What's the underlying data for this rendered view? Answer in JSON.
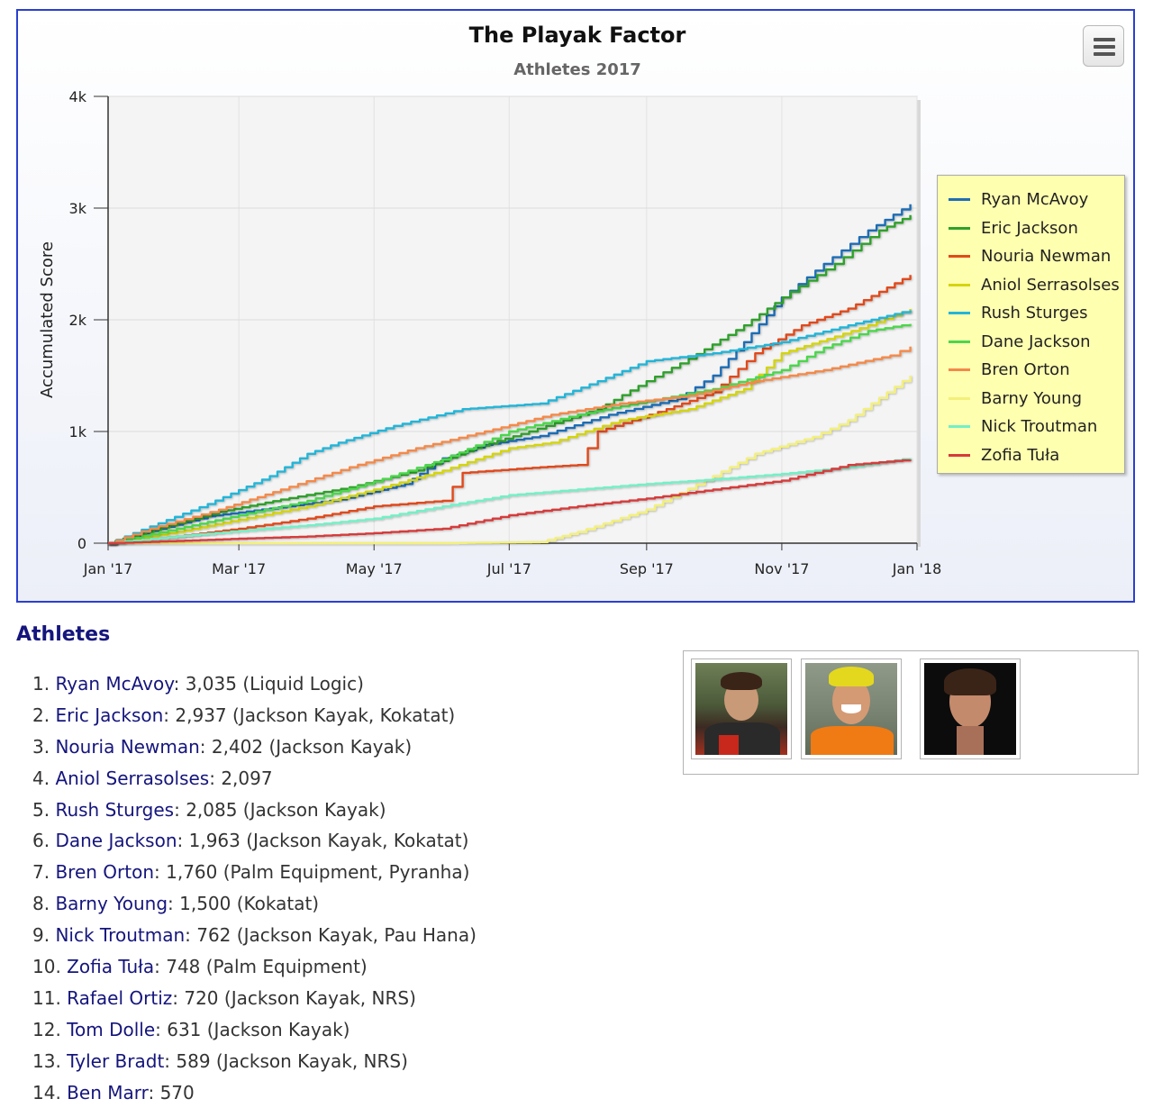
{
  "chart": {
    "title": "The Playak Factor",
    "subtitle": "Athletes 2017",
    "menu_icon": "hamburger-menu-icon"
  },
  "chart_data": {
    "type": "line",
    "title": "The Playak Factor",
    "subtitle": "Athletes 2017",
    "xlabel": "",
    "ylabel": "Accumulated Score",
    "x_ticks": [
      "Jan '17",
      "Mar '17",
      "May '17",
      "Jul '17",
      "Sep '17",
      "Nov '17",
      "Jan '18"
    ],
    "y_ticks": [
      "0",
      "1k",
      "2k",
      "3k",
      "4k"
    ],
    "ylim": [
      0,
      4000
    ],
    "xlim": [
      "2017-01-01",
      "2018-01-01"
    ],
    "grid": true,
    "legend_position": "right",
    "series": [
      {
        "name": "Ryan McAvoy",
        "color": "#1f6db5",
        "points": [
          [
            "2017-01-01",
            0
          ],
          [
            "2017-01-20",
            110
          ],
          [
            "2017-02-15",
            240
          ],
          [
            "2017-03-15",
            310
          ],
          [
            "2017-04-15",
            390
          ],
          [
            "2017-05-15",
            530
          ],
          [
            "2017-06-01",
            760
          ],
          [
            "2017-06-20",
            880
          ],
          [
            "2017-07-15",
            960
          ],
          [
            "2017-08-15",
            1150
          ],
          [
            "2017-09-15",
            1290
          ],
          [
            "2017-10-01",
            1500
          ],
          [
            "2017-10-15",
            1800
          ],
          [
            "2017-11-01",
            2200
          ],
          [
            "2017-11-20",
            2500
          ],
          [
            "2017-12-10",
            2800
          ],
          [
            "2017-12-29",
            3035
          ]
        ]
      },
      {
        "name": "Eric Jackson",
        "color": "#2ea02c",
        "points": [
          [
            "2017-01-01",
            0
          ],
          [
            "2017-01-25",
            140
          ],
          [
            "2017-02-20",
            280
          ],
          [
            "2017-03-20",
            390
          ],
          [
            "2017-04-20",
            500
          ],
          [
            "2017-05-20",
            650
          ],
          [
            "2017-06-15",
            850
          ],
          [
            "2017-07-10",
            1000
          ],
          [
            "2017-08-10",
            1200
          ],
          [
            "2017-09-01",
            1450
          ],
          [
            "2017-09-20",
            1650
          ],
          [
            "2017-10-15",
            1950
          ],
          [
            "2017-11-05",
            2250
          ],
          [
            "2017-11-25",
            2500
          ],
          [
            "2017-12-15",
            2800
          ],
          [
            "2017-12-29",
            2937
          ]
        ]
      },
      {
        "name": "Nouria Newman",
        "color": "#e04a1a",
        "points": [
          [
            "2017-01-01",
            0
          ],
          [
            "2017-02-01",
            60
          ],
          [
            "2017-03-01",
            130
          ],
          [
            "2017-04-01",
            220
          ],
          [
            "2017-05-01",
            330
          ],
          [
            "2017-06-01",
            380
          ],
          [
            "2017-06-10",
            630
          ],
          [
            "2017-07-15",
            680
          ],
          [
            "2017-08-01",
            700
          ],
          [
            "2017-08-10",
            1000
          ],
          [
            "2017-09-10",
            1200
          ],
          [
            "2017-10-01",
            1350
          ],
          [
            "2017-10-20",
            1700
          ],
          [
            "2017-11-10",
            1950
          ],
          [
            "2017-12-01",
            2100
          ],
          [
            "2017-12-29",
            2402
          ]
        ]
      },
      {
        "name": "Aniol Serrasolses",
        "color": "#d4d40e",
        "points": [
          [
            "2017-01-01",
            0
          ],
          [
            "2017-02-01",
            100
          ],
          [
            "2017-03-01",
            210
          ],
          [
            "2017-04-01",
            330
          ],
          [
            "2017-05-01",
            480
          ],
          [
            "2017-06-01",
            650
          ],
          [
            "2017-07-01",
            850
          ],
          [
            "2017-07-20",
            900
          ],
          [
            "2017-08-20",
            1100
          ],
          [
            "2017-09-20",
            1200
          ],
          [
            "2017-10-15",
            1380
          ],
          [
            "2017-11-01",
            1700
          ],
          [
            "2017-11-25",
            1850
          ],
          [
            "2017-12-10",
            1950
          ],
          [
            "2017-12-29",
            2097
          ]
        ]
      },
      {
        "name": "Rush Sturges",
        "color": "#22b5d8",
        "points": [
          [
            "2017-01-01",
            0
          ],
          [
            "2017-01-20",
            150
          ],
          [
            "2017-02-15",
            350
          ],
          [
            "2017-03-15",
            600
          ],
          [
            "2017-04-01",
            800
          ],
          [
            "2017-04-15",
            900
          ],
          [
            "2017-05-10",
            1050
          ],
          [
            "2017-06-10",
            1200
          ],
          [
            "2017-07-15",
            1250
          ],
          [
            "2017-08-10",
            1450
          ],
          [
            "2017-09-01",
            1630
          ],
          [
            "2017-10-01",
            1700
          ],
          [
            "2017-11-01",
            1800
          ],
          [
            "2017-12-01",
            1950
          ],
          [
            "2017-12-29",
            2085
          ]
        ]
      },
      {
        "name": "Dane Jackson",
        "color": "#4cd64c",
        "points": [
          [
            "2017-01-01",
            0
          ],
          [
            "2017-02-01",
            130
          ],
          [
            "2017-03-01",
            250
          ],
          [
            "2017-04-01",
            380
          ],
          [
            "2017-05-01",
            550
          ],
          [
            "2017-06-01",
            750
          ],
          [
            "2017-07-01",
            1000
          ],
          [
            "2017-08-01",
            1150
          ],
          [
            "2017-09-01",
            1270
          ],
          [
            "2017-10-01",
            1380
          ],
          [
            "2017-11-01",
            1550
          ],
          [
            "2017-11-20",
            1750
          ],
          [
            "2017-12-10",
            1900
          ],
          [
            "2017-12-29",
            1963
          ]
        ]
      },
      {
        "name": "Bren Orton",
        "color": "#f4894a",
        "points": [
          [
            "2017-01-01",
            0
          ],
          [
            "2017-01-20",
            130
          ],
          [
            "2017-02-20",
            300
          ],
          [
            "2017-03-20",
            480
          ],
          [
            "2017-04-20",
            680
          ],
          [
            "2017-05-20",
            850
          ],
          [
            "2017-06-20",
            1000
          ],
          [
            "2017-07-20",
            1150
          ],
          [
            "2017-08-20",
            1250
          ],
          [
            "2017-09-20",
            1320
          ],
          [
            "2017-10-20",
            1450
          ],
          [
            "2017-11-20",
            1550
          ],
          [
            "2017-12-20",
            1680
          ],
          [
            "2017-12-29",
            1760
          ]
        ]
      },
      {
        "name": "Barny Young",
        "color": "#f3f07a",
        "points": [
          [
            "2017-01-01",
            0
          ],
          [
            "2017-03-01",
            0
          ],
          [
            "2017-06-01",
            0
          ],
          [
            "2017-07-15",
            10
          ],
          [
            "2017-08-01",
            100
          ],
          [
            "2017-09-01",
            300
          ],
          [
            "2017-10-01",
            600
          ],
          [
            "2017-10-20",
            800
          ],
          [
            "2017-11-15",
            950
          ],
          [
            "2017-12-01",
            1100
          ],
          [
            "2017-12-15",
            1300
          ],
          [
            "2017-12-29",
            1500
          ]
        ]
      },
      {
        "name": "Nick Troutman",
        "color": "#72f0c6",
        "points": [
          [
            "2017-01-01",
            0
          ],
          [
            "2017-02-01",
            60
          ],
          [
            "2017-03-01",
            110
          ],
          [
            "2017-04-01",
            160
          ],
          [
            "2017-05-01",
            220
          ],
          [
            "2017-06-01",
            330
          ],
          [
            "2017-07-01",
            430
          ],
          [
            "2017-08-01",
            480
          ],
          [
            "2017-09-01",
            530
          ],
          [
            "2017-10-01",
            570
          ],
          [
            "2017-11-01",
            620
          ],
          [
            "2017-12-01",
            680
          ],
          [
            "2017-12-29",
            762
          ]
        ]
      },
      {
        "name": "Zofia Tuła",
        "color": "#d63a3a",
        "points": [
          [
            "2017-01-01",
            0
          ],
          [
            "2017-02-01",
            20
          ],
          [
            "2017-03-01",
            40
          ],
          [
            "2017-04-01",
            60
          ],
          [
            "2017-05-01",
            90
          ],
          [
            "2017-06-01",
            130
          ],
          [
            "2017-07-01",
            250
          ],
          [
            "2017-08-01",
            330
          ],
          [
            "2017-09-01",
            400
          ],
          [
            "2017-10-01",
            480
          ],
          [
            "2017-11-01",
            560
          ],
          [
            "2017-12-01",
            700
          ],
          [
            "2017-12-29",
            748
          ]
        ]
      }
    ]
  },
  "section": {
    "title": "Athletes"
  },
  "athletes": [
    {
      "rank": "1.",
      "name": "Ryan McAvoy",
      "detail": ": 3,035 (Liquid Logic)"
    },
    {
      "rank": "2.",
      "name": "Eric Jackson",
      "detail": ": 2,937 (Jackson Kayak, Kokatat)"
    },
    {
      "rank": "3.",
      "name": "Nouria Newman",
      "detail": ": 2,402 (Jackson Kayak)"
    },
    {
      "rank": "4.",
      "name": "Aniol Serrasolses",
      "detail": ": 2,097"
    },
    {
      "rank": "5.",
      "name": "Rush Sturges",
      "detail": ": 2,085 (Jackson Kayak)"
    },
    {
      "rank": "6.",
      "name": "Dane Jackson",
      "detail": ": 1,963 (Jackson Kayak, Kokatat)"
    },
    {
      "rank": "7.",
      "name": "Bren Orton",
      "detail": ": 1,760 (Palm Equipment, Pyranha)"
    },
    {
      "rank": "8.",
      "name": "Barny Young",
      "detail": ": 1,500 (Kokatat)"
    },
    {
      "rank": "9.",
      "name": "Nick Troutman",
      "detail": ": 762 (Jackson Kayak, Pau Hana)"
    },
    {
      "rank": "10.",
      "name": "Zofia Tuła",
      "detail": ": 748 (Palm Equipment)"
    },
    {
      "rank": "11.",
      "name": "Rafael Ortiz",
      "detail": ": 720 (Jackson Kayak, NRS)"
    },
    {
      "rank": "12.",
      "name": "Tom Dolle",
      "detail": ": 631 (Jackson Kayak)"
    },
    {
      "rank": "13.",
      "name": "Tyler Bradt",
      "detail": ": 589 (Jackson Kayak, NRS)"
    },
    {
      "rank": "14.",
      "name": "Ben Marr",
      "detail": ": 570"
    }
  ],
  "photos": [
    {
      "icon": "athlete-photo-1"
    },
    {
      "icon": "athlete-photo-2"
    },
    {
      "icon": "athlete-photo-3"
    }
  ]
}
